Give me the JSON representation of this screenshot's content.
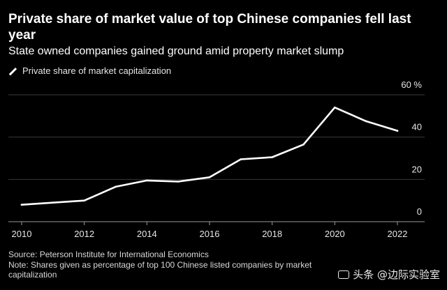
{
  "header": {
    "title": "Private share of market value of top Chinese companies fell last year",
    "subtitle": "State owned companies gained ground amid property market slump"
  },
  "colors": {
    "background": "#000000",
    "line": "#ffffff",
    "grid": "#3a3a3a",
    "text": "#ffffff",
    "muted_text": "#d8d8d8"
  },
  "chart_data": {
    "type": "line",
    "title": "Private share of market value of top Chinese companies fell last year",
    "subtitle": "State owned companies gained ground amid property market slump",
    "xlabel": "",
    "ylabel": "",
    "y_unit": "%",
    "xlim": [
      2010,
      2022
    ],
    "ylim": [
      0,
      60
    ],
    "grid": true,
    "legend_position": "top-left",
    "x_ticks": [
      "2010",
      "2012",
      "2014",
      "2016",
      "2018",
      "2020",
      "2022"
    ],
    "y_ticks": [
      "0",
      "20",
      "40",
      "60"
    ],
    "series": [
      {
        "name": "Private share of market capitalization",
        "x": [
          2010,
          2011,
          2012,
          2013,
          2014,
          2015,
          2016,
          2017,
          2018,
          2019,
          2020,
          2021,
          2022
        ],
        "y": [
          8,
          9,
          10,
          16.5,
          19.5,
          19,
          21,
          29.5,
          30.5,
          36.5,
          54,
          47.5,
          43
        ]
      }
    ]
  },
  "footer": {
    "source": "Source: Peterson Institute for International Economics",
    "note": "Note: Shares given as percentage of top 100 Chinese listed companies by market capitalization"
  },
  "watermark": {
    "text": "头条 @边际实验室",
    "icon": "toutiao-logo-icon"
  }
}
